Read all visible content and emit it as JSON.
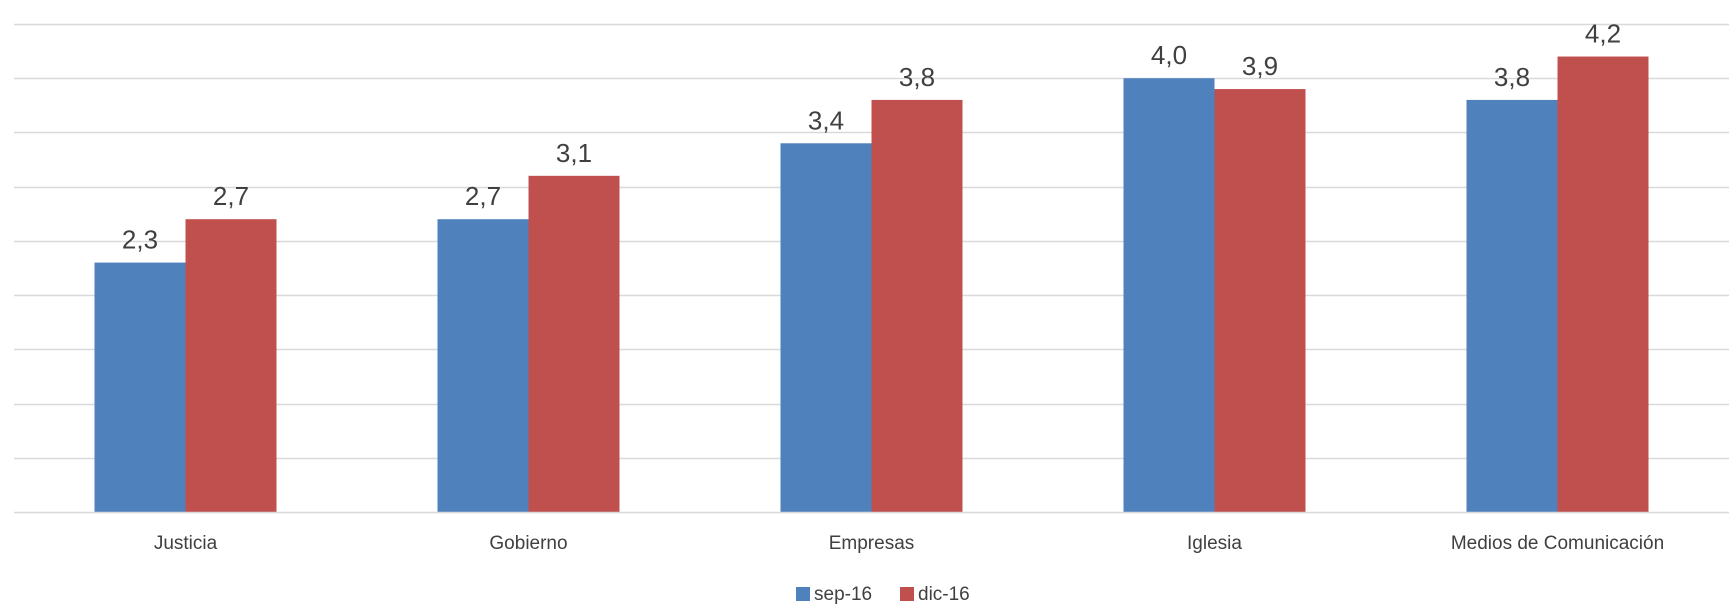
{
  "chart_data": {
    "type": "bar",
    "categories": [
      "Justicia",
      "Gobierno",
      "Empresas",
      "Iglesia",
      "Medios de Comunicación"
    ],
    "series": [
      {
        "name": "sep-16",
        "values": [
          2.3,
          2.7,
          3.4,
          4.0,
          3.8
        ],
        "labels": [
          "2,3",
          "2,7",
          "3,4",
          "4,0",
          "3,8"
        ],
        "color": "#4F81BD"
      },
      {
        "name": "dic-16",
        "values": [
          2.7,
          3.1,
          3.8,
          3.9,
          4.2
        ],
        "labels": [
          "2,7",
          "3,1",
          "3,8",
          "3,9",
          "4,2"
        ],
        "color": "#C0504D"
      }
    ],
    "ylim": [
      0,
      4.5
    ],
    "grid": true,
    "legend": "bottom-center",
    "title": "",
    "xlabel": "",
    "ylabel": ""
  }
}
